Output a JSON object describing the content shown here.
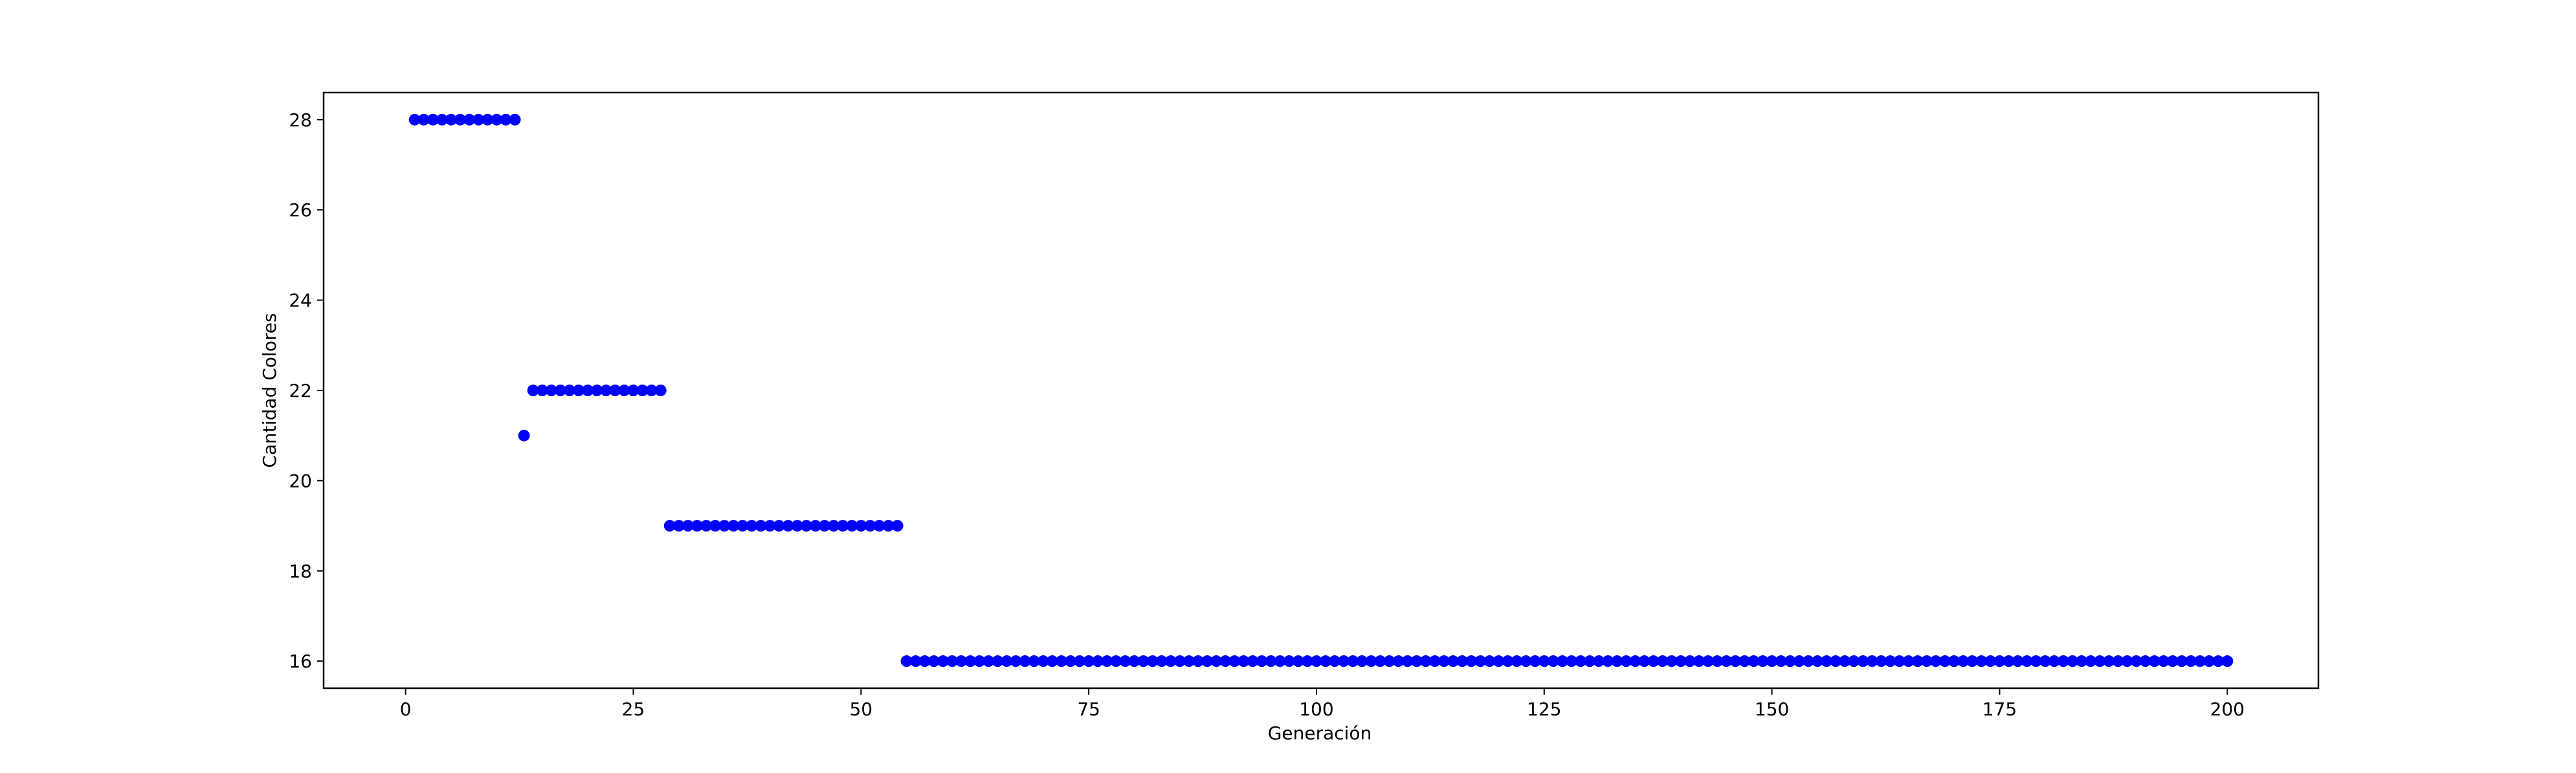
{
  "chart_data": {
    "type": "scatter",
    "title": "",
    "xlabel": "Generación",
    "ylabel": "Cantidad Colores",
    "xlim": [
      -9,
      210
    ],
    "ylim": [
      15.4,
      28.6
    ],
    "xticks": [
      0,
      25,
      50,
      75,
      100,
      125,
      150,
      175,
      200
    ],
    "yticks": [
      16,
      18,
      20,
      22,
      24,
      26,
      28
    ],
    "grid": false,
    "legend": "none",
    "marker_color": "#0000ff",
    "series": [
      {
        "segments": [
          {
            "x_from": 1,
            "x_to": 12,
            "y": 28
          },
          {
            "x_from": 13,
            "x_to": 13,
            "y": 21
          },
          {
            "x_from": 14,
            "x_to": 28,
            "y": 22
          },
          {
            "x_from": 29,
            "x_to": 54,
            "y": 19
          },
          {
            "x_from": 55,
            "x_to": 200,
            "y": 16
          }
        ]
      }
    ]
  }
}
